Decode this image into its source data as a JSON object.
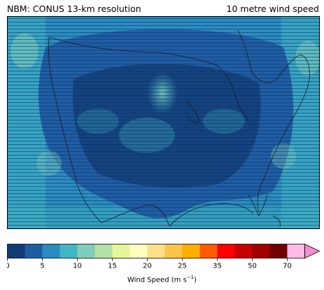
{
  "header": {
    "title_left": "NBM: CONUS 13-km resolution",
    "title_right": "10 metre wind speed"
  },
  "map": {
    "variable": "10 metre wind speed",
    "palette": {
      "deep_navy": "#123b73",
      "dark_blue": "#1f5da3",
      "mid_blue": "#2b8cbe",
      "teal": "#41b6c4",
      "light_teal": "#7fcdbb",
      "coast_line": "#1a1a1a"
    }
  },
  "colorbar": {
    "label_main": "Wind Speed (m s",
    "label_sup": "−1",
    "label_end": ")",
    "bounds": [
      0,
      2.5,
      5,
      7.5,
      10,
      12.5,
      15,
      17.5,
      20,
      22.5,
      25,
      30,
      35,
      40,
      50,
      60,
      70
    ],
    "colors": [
      "#123b73",
      "#1f5da3",
      "#2b8cbe",
      "#41b6c4",
      "#7fcdbb",
      "#b3e0a6",
      "#e6f598",
      "#ffffbf",
      "#fee08b",
      "#fdc44a",
      "#fdae00",
      "#fe5c00",
      "#fe0000",
      "#c80000",
      "#a00000",
      "#700000",
      "#ffbbe6"
    ],
    "extend_color": "#f48fd2",
    "ticks": [
      "0",
      "5",
      "10",
      "15",
      "20",
      "25",
      "35",
      "50",
      "70"
    ]
  }
}
